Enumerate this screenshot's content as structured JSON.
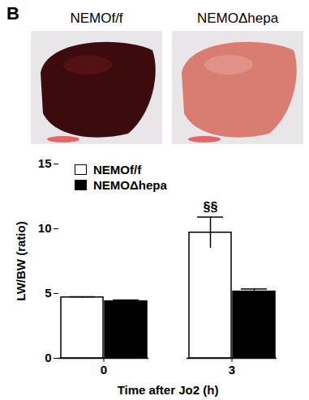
{
  "chart_data": {
    "type": "bar",
    "panel_label": "B",
    "photo_labels": [
      "NEMOf/f",
      "NEMOΔhepa"
    ],
    "x_label": "Time after Jo2 (h)",
    "y_label": "LW/BW (ratio)",
    "categories": [
      "0",
      "3"
    ],
    "series": [
      {
        "name": "NEMOf/f",
        "color": "#ffffff",
        "values": [
          4.7,
          9.7
        ],
        "errors": [
          0.05,
          1.2
        ]
      },
      {
        "name": "NEMOΔhepa",
        "color": "#000000",
        "values": [
          4.4,
          5.15
        ],
        "errors": [
          0.1,
          0.2
        ]
      }
    ],
    "annotations": [
      {
        "text": "§§",
        "category": "3",
        "series": "NEMOf/f"
      }
    ],
    "ylim": [
      0,
      15
    ],
    "yticks": [
      0,
      5,
      10,
      15
    ],
    "legend": "top-left"
  }
}
